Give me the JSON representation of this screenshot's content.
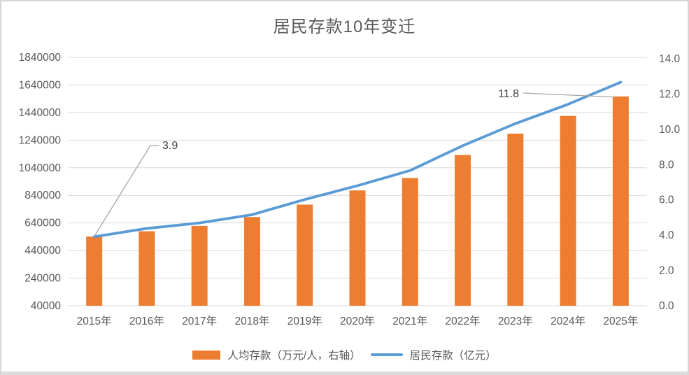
{
  "chart_data": {
    "type": "combo-bar-line",
    "title": "居民存款10年变迁",
    "categories": [
      "2015年",
      "2016年",
      "2017年",
      "2018年",
      "2019年",
      "2020年",
      "2021年",
      "2022年",
      "2023年",
      "2024年",
      "2025年"
    ],
    "series": [
      {
        "name": "人均存款（万元/人，右轴）",
        "type": "bar",
        "axis": "right",
        "color": "#ED7D31",
        "values": [
          3.9,
          4.2,
          4.5,
          5.0,
          5.7,
          6.5,
          7.2,
          8.5,
          9.7,
          10.7,
          11.8
        ]
      },
      {
        "name": "居民存款（亿元）",
        "type": "line",
        "axis": "left",
        "color": "#5B9BD5",
        "values": [
          540000,
          600000,
          640000,
          700000,
          810000,
          910000,
          1020000,
          1200000,
          1360000,
          1500000,
          1660000
        ]
      }
    ],
    "left_axis": {
      "min": 40000,
      "max": 1840000,
      "step": 200000,
      "ticks": [
        "1840000",
        "1640000",
        "1440000",
        "1240000",
        "1040000",
        "840000",
        "640000",
        "440000",
        "240000",
        "40000"
      ]
    },
    "right_axis": {
      "min": 0.0,
      "max": 14.0,
      "step": 2.0,
      "ticks": [
        "14.0",
        "12.0",
        "10.0",
        "8.0",
        "6.0",
        "4.0",
        "2.0",
        "0.0"
      ]
    },
    "annotations": [
      {
        "text": "3.9",
        "series": 0,
        "index": 0
      },
      {
        "text": "11.8",
        "series": 0,
        "index": 10
      }
    ],
    "grid": true,
    "legend_position": "bottom",
    "colors": {
      "grid": "#d9d9d9",
      "axis_text": "#595959",
      "annotation_text": "#404040",
      "leader_line": "#a6a6a6",
      "background": "#ffffff"
    }
  }
}
